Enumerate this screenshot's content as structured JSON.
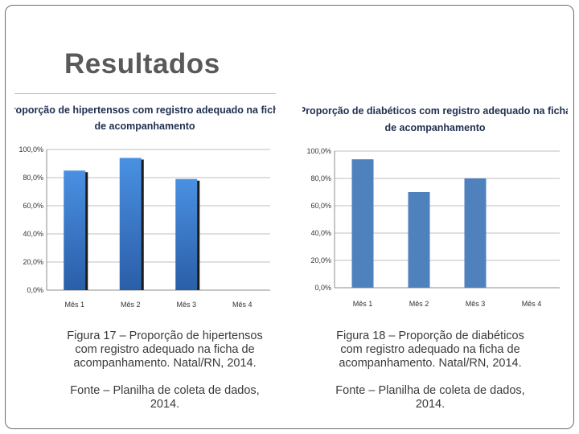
{
  "slide": {
    "title": "Resultados"
  },
  "chart_data": [
    {
      "type": "bar",
      "title_lines": [
        "Proporção de hipertensos com registro adequado na ficha",
        "de acompanhamento"
      ],
      "categories": [
        "Mês 1",
        "Mês 2",
        "Mês 3",
        "Mês 4"
      ],
      "values": [
        85,
        94,
        79,
        0
      ],
      "ylim": [
        0,
        100
      ],
      "yticks": [
        0,
        20,
        40,
        60,
        80,
        100
      ],
      "ytick_labels": [
        "0,0%",
        "20,0%",
        "40,0%",
        "60,0%",
        "80,0%",
        "100,0%"
      ],
      "grid": true,
      "legend": "none",
      "bar_color": "#3a78cc",
      "style": "3d-gradient"
    },
    {
      "type": "bar",
      "title_lines": [
        "Proporção de diabéticos com registro adequado na ficha",
        "de acompanhamento"
      ],
      "categories": [
        "Mês 1",
        "Mês 2",
        "Mês 3",
        "Mês 4"
      ],
      "values": [
        94,
        70,
        80,
        0
      ],
      "ylim": [
        0,
        100
      ],
      "yticks": [
        0,
        20,
        40,
        60,
        80,
        100
      ],
      "ytick_labels": [
        "0,0%",
        "20,0%",
        "40,0%",
        "60,0%",
        "80,0%",
        "100,0%"
      ],
      "grid": true,
      "legend": "none",
      "bar_color": "#4f81bd",
      "style": "flat"
    }
  ],
  "captions": {
    "left": {
      "figure": "Figura 17 – Proporção de hipertensos com registro adequado na ficha de acompanhamento. Natal/RN, 2014.",
      "source": "Fonte – Planilha de coleta de dados, 2014."
    },
    "right": {
      "figure": "Figura 18 – Proporção de diabéticos com registro adequado na ficha de acompanhamento. Natal/RN, 2014.",
      "source": "Fonte – Planilha de coleta de dados, 2014."
    }
  }
}
